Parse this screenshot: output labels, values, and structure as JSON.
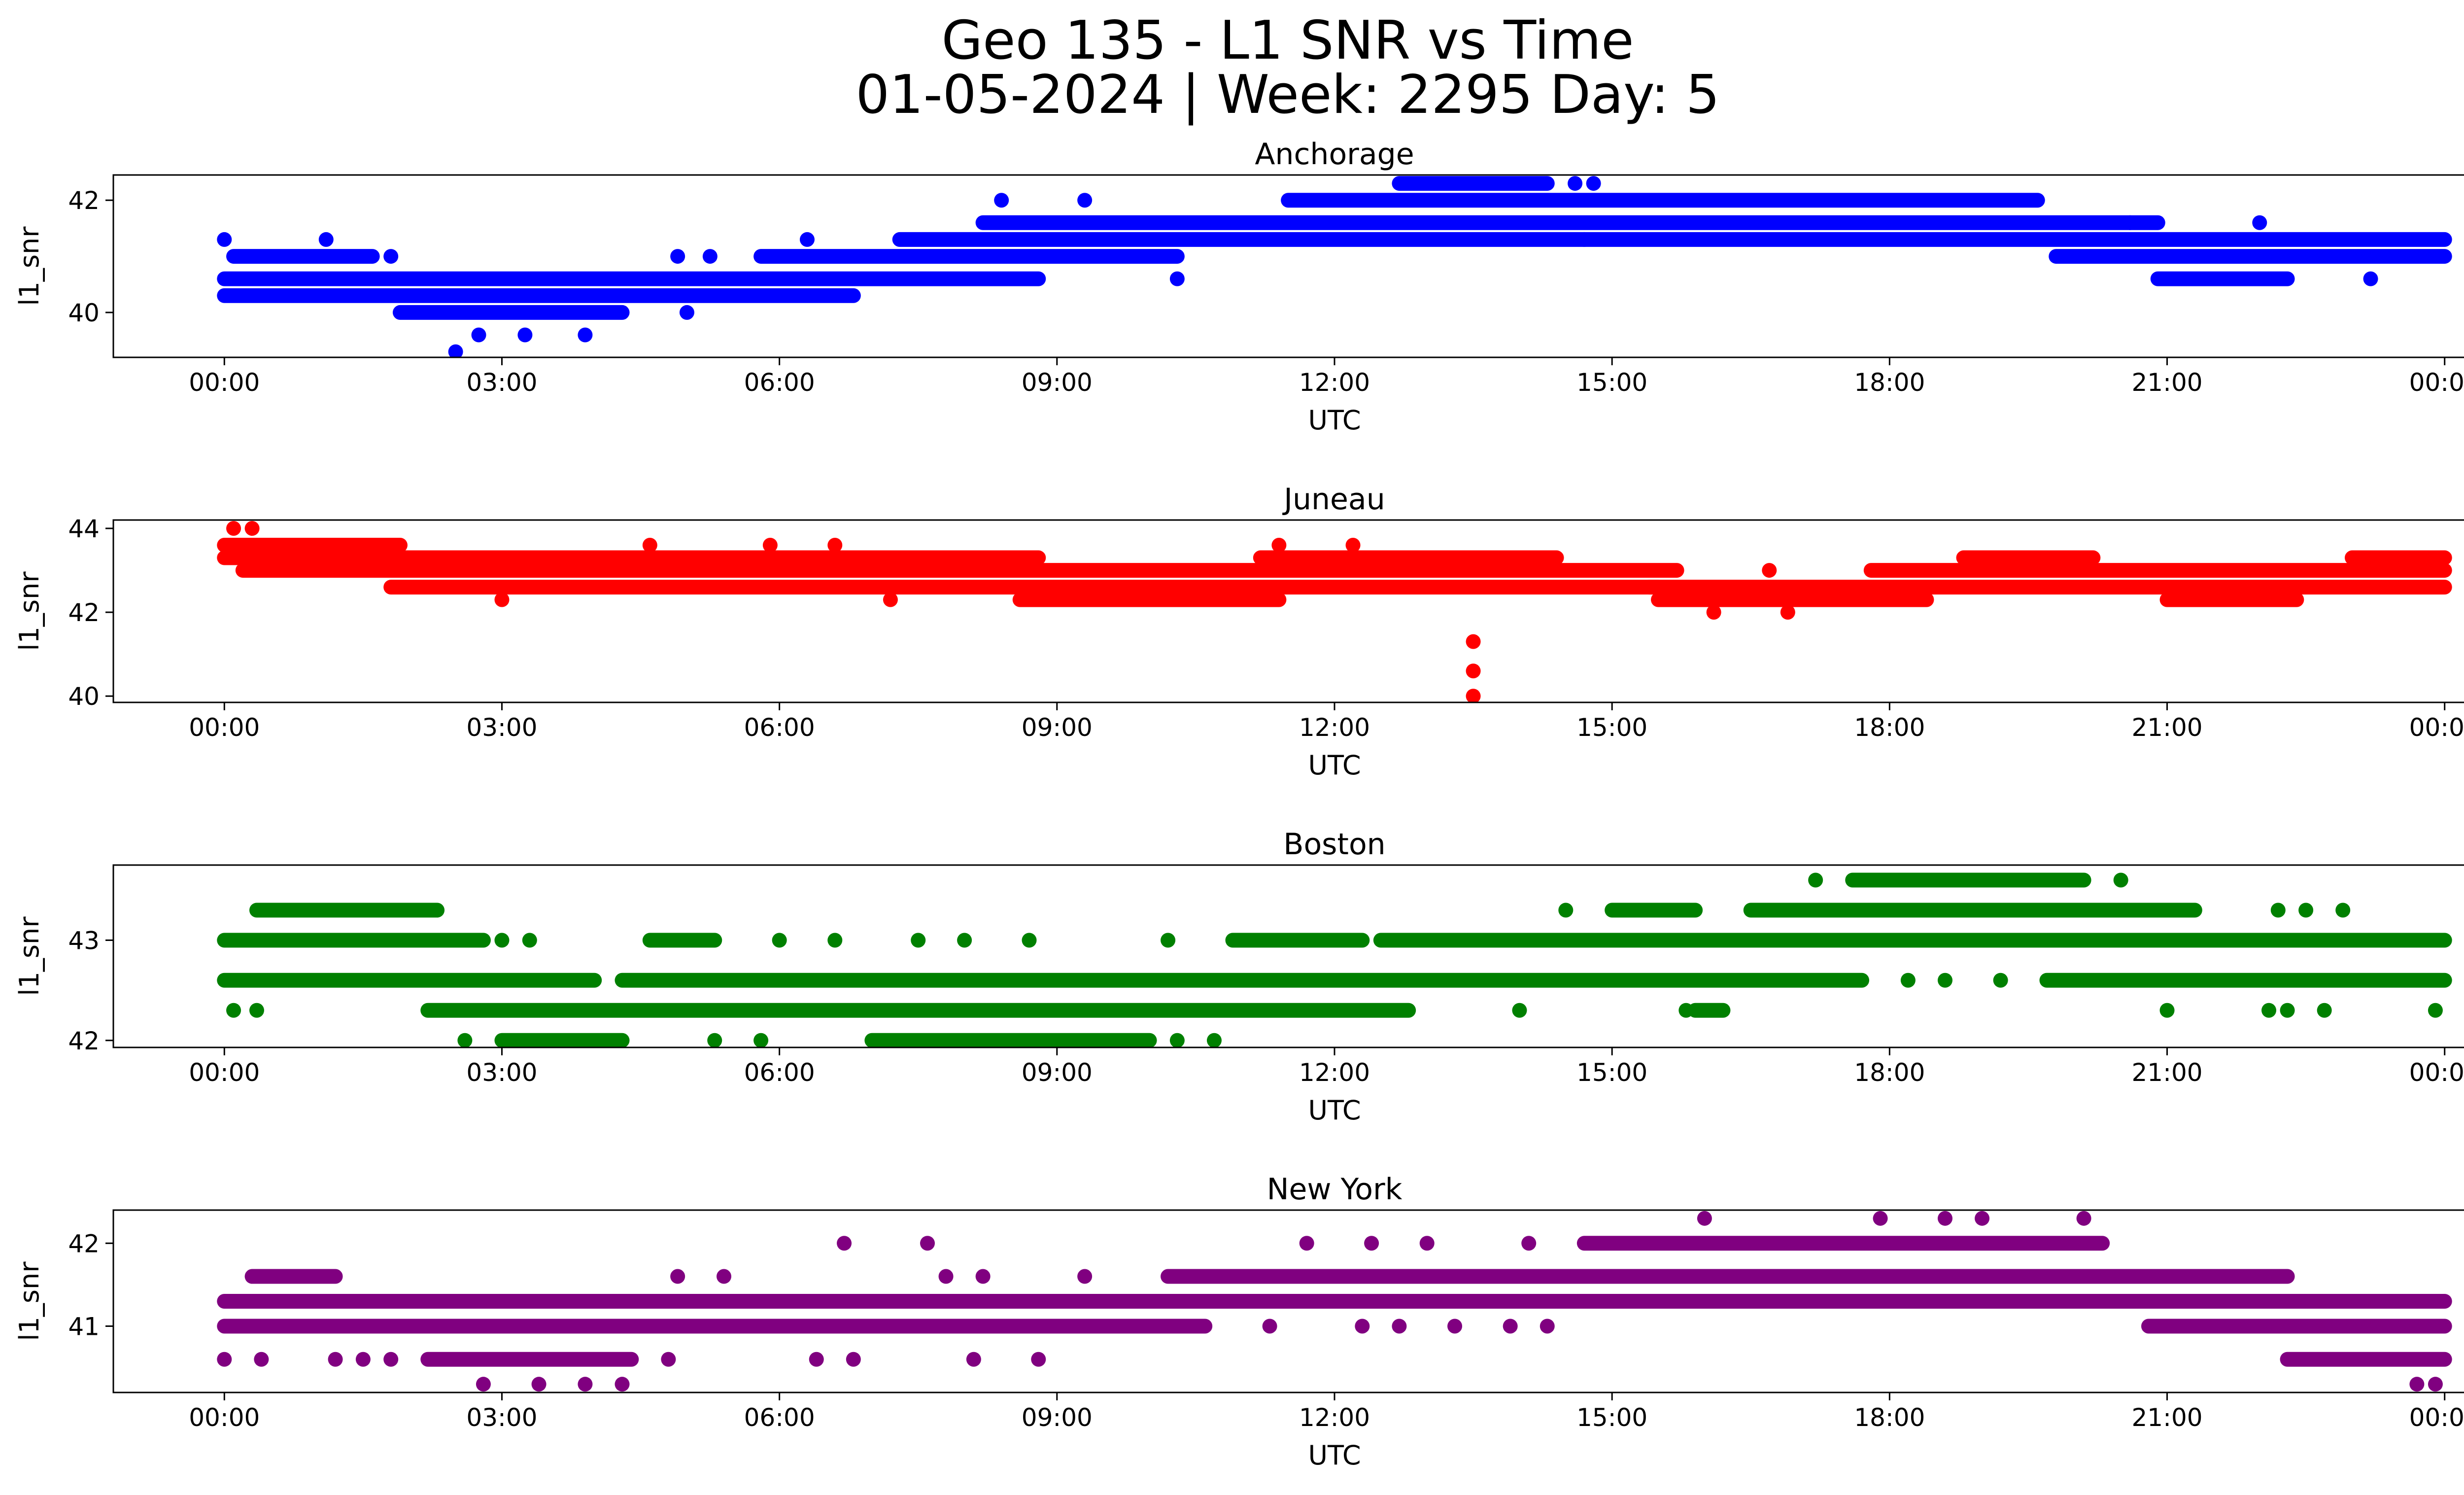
{
  "figure": {
    "title_line1": "Geo 135 - L1 SNR vs Time",
    "title_line2": "01-05-2024 | Week: 2295 Day: 5"
  },
  "chart_data": [
    {
      "type": "scatter",
      "title": "Anchorage",
      "xlabel": "UTC",
      "ylabel": "l1_snr",
      "color": "#0000ff",
      "x_ticks": [
        "00:00",
        "03:00",
        "06:00",
        "09:00",
        "12:00",
        "15:00",
        "18:00",
        "21:00",
        "00:00"
      ],
      "xlim_hours": [
        -1.2,
        25.2
      ],
      "y_ticks": [
        40,
        42
      ],
      "ylim": [
        39.2,
        42.45
      ],
      "levels": [
        39.3,
        39.6,
        40.0,
        40.3,
        40.6,
        41.0,
        41.3,
        41.6,
        42.0,
        42.3
      ],
      "bands": [
        {
          "level": 40.3,
          "from": 0.0,
          "to": 6.8
        },
        {
          "level": 40.6,
          "from": 0.0,
          "to": 8.8
        },
        {
          "level": 41.0,
          "from": 0.1,
          "to": 1.6
        },
        {
          "level": 40.0,
          "from": 1.9,
          "to": 4.3
        },
        {
          "level": 41.0,
          "from": 5.8,
          "to": 10.3
        },
        {
          "level": 41.3,
          "from": 7.3,
          "to": 24.0
        },
        {
          "level": 41.6,
          "from": 8.2,
          "to": 20.9
        },
        {
          "level": 42.0,
          "from": 11.5,
          "to": 19.6
        },
        {
          "level": 42.3,
          "from": 12.7,
          "to": 14.3
        },
        {
          "level": 41.0,
          "from": 19.8,
          "to": 24.0
        },
        {
          "level": 40.6,
          "from": 20.9,
          "to": 22.3
        }
      ],
      "points": [
        {
          "h": 2.5,
          "v": 39.3
        },
        {
          "h": 2.75,
          "v": 39.6
        },
        {
          "h": 3.25,
          "v": 39.6
        },
        {
          "h": 3.9,
          "v": 39.6
        },
        {
          "h": 0.0,
          "v": 41.3
        },
        {
          "h": 1.1,
          "v": 41.3
        },
        {
          "h": 1.8,
          "v": 41.0
        },
        {
          "h": 5.0,
          "v": 40.0
        },
        {
          "h": 4.9,
          "v": 41.0
        },
        {
          "h": 5.25,
          "v": 41.0
        },
        {
          "h": 6.3,
          "v": 41.3
        },
        {
          "h": 10.3,
          "v": 40.6
        },
        {
          "h": 14.7,
          "v": 41.3
        },
        {
          "h": 14.6,
          "v": 42.3
        },
        {
          "h": 14.8,
          "v": 42.3
        },
        {
          "h": 23.2,
          "v": 40.6
        },
        {
          "h": 20.6,
          "v": 41.6
        },
        {
          "h": 22.0,
          "v": 41.6
        },
        {
          "h": 8.4,
          "v": 42.0
        },
        {
          "h": 9.3,
          "v": 42.0
        }
      ]
    },
    {
      "type": "scatter",
      "title": "Juneau",
      "xlabel": "UTC",
      "ylabel": "l1_snr",
      "color": "#ff0000",
      "x_ticks": [
        "00:00",
        "03:00",
        "06:00",
        "09:00",
        "12:00",
        "15:00",
        "18:00",
        "21:00",
        "00:00"
      ],
      "xlim_hours": [
        -1.2,
        25.2
      ],
      "y_ticks": [
        40,
        42,
        44
      ],
      "ylim": [
        39.85,
        44.2
      ],
      "levels": [
        40.0,
        40.6,
        41.3,
        42.0,
        42.3,
        42.6,
        43.0,
        43.3,
        43.6,
        44.0
      ],
      "bands": [
        {
          "level": 43.6,
          "from": 0.0,
          "to": 1.9
        },
        {
          "level": 43.3,
          "from": 0.0,
          "to": 8.8
        },
        {
          "level": 43.0,
          "from": 0.2,
          "to": 15.7
        },
        {
          "level": 42.6,
          "from": 1.8,
          "to": 15.5
        },
        {
          "level": 42.3,
          "from": 8.6,
          "to": 11.4
        },
        {
          "level": 43.3,
          "from": 11.2,
          "to": 14.4
        },
        {
          "level": 42.3,
          "from": 15.5,
          "to": 18.4
        },
        {
          "level": 42.6,
          "from": 15.4,
          "to": 24.0
        },
        {
          "level": 43.0,
          "from": 17.8,
          "to": 24.0
        },
        {
          "level": 43.3,
          "from": 18.8,
          "to": 20.2
        },
        {
          "level": 42.3,
          "from": 21.0,
          "to": 22.4
        },
        {
          "level": 43.3,
          "from": 23.0,
          "to": 24.0
        }
      ],
      "points": [
        {
          "h": 0.1,
          "v": 44.0
        },
        {
          "h": 0.3,
          "v": 44.0
        },
        {
          "h": 3.0,
          "v": 42.3
        },
        {
          "h": 7.2,
          "v": 42.3
        },
        {
          "h": 13.5,
          "v": 41.3
        },
        {
          "h": 13.5,
          "v": 40.6
        },
        {
          "h": 13.5,
          "v": 40.0
        },
        {
          "h": 16.1,
          "v": 42.0
        },
        {
          "h": 16.9,
          "v": 42.0
        },
        {
          "h": 4.6,
          "v": 43.6
        },
        {
          "h": 5.9,
          "v": 43.6
        },
        {
          "h": 6.6,
          "v": 43.6
        },
        {
          "h": 12.2,
          "v": 43.6
        },
        {
          "h": 11.4,
          "v": 43.6
        },
        {
          "h": 16.7,
          "v": 43.0
        },
        {
          "h": 23.2,
          "v": 43.3
        }
      ]
    },
    {
      "type": "scatter",
      "title": "Boston",
      "xlabel": "UTC",
      "ylabel": "l1_snr",
      "color": "#008000",
      "x_ticks": [
        "00:00",
        "03:00",
        "06:00",
        "09:00",
        "12:00",
        "15:00",
        "18:00",
        "21:00",
        "00:00"
      ],
      "xlim_hours": [
        -1.2,
        25.2
      ],
      "y_ticks": [
        42,
        43
      ],
      "ylim": [
        41.93,
        43.75
      ],
      "levels": [
        42.0,
        42.3,
        42.6,
        43.0,
        43.3,
        43.6
      ],
      "bands": [
        {
          "level": 43.3,
          "from": 0.35,
          "to": 2.3
        },
        {
          "level": 43.0,
          "from": 0.0,
          "to": 2.8
        },
        {
          "level": 42.6,
          "from": 0.0,
          "to": 4.0
        },
        {
          "level": 42.3,
          "from": 2.2,
          "to": 12.8
        },
        {
          "level": 42.0,
          "from": 3.0,
          "to": 4.3
        },
        {
          "level": 42.6,
          "from": 4.3,
          "to": 17.7
        },
        {
          "level": 43.0,
          "from": 4.6,
          "to": 5.3
        },
        {
          "level": 43.0,
          "from": 10.9,
          "to": 12.3
        },
        {
          "level": 43.0,
          "from": 12.5,
          "to": 24.0
        },
        {
          "level": 43.3,
          "from": 15.0,
          "to": 15.9
        },
        {
          "level": 43.3,
          "from": 16.5,
          "to": 21.3
        },
        {
          "level": 43.6,
          "from": 17.6,
          "to": 20.1
        },
        {
          "level": 42.6,
          "from": 19.7,
          "to": 24.0
        },
        {
          "level": 42.0,
          "from": 7.0,
          "to": 10.0
        },
        {
          "level": 42.3,
          "from": 15.9,
          "to": 16.2
        }
      ],
      "points": [
        {
          "h": 0.1,
          "v": 42.3
        },
        {
          "h": 0.35,
          "v": 42.3
        },
        {
          "h": 2.6,
          "v": 42.0
        },
        {
          "h": 5.3,
          "v": 42.0
        },
        {
          "h": 5.8,
          "v": 42.0
        },
        {
          "h": 10.3,
          "v": 42.0
        },
        {
          "h": 10.7,
          "v": 42.0
        },
        {
          "h": 3.0,
          "v": 43.0
        },
        {
          "h": 3.3,
          "v": 43.0
        },
        {
          "h": 6.0,
          "v": 43.0
        },
        {
          "h": 6.6,
          "v": 43.0
        },
        {
          "h": 7.5,
          "v": 43.0
        },
        {
          "h": 8.0,
          "v": 43.0
        },
        {
          "h": 8.7,
          "v": 43.0
        },
        {
          "h": 10.2,
          "v": 43.0
        },
        {
          "h": 14.5,
          "v": 43.3
        },
        {
          "h": 17.2,
          "v": 43.6
        },
        {
          "h": 20.0,
          "v": 43.6
        },
        {
          "h": 20.5,
          "v": 43.6
        },
        {
          "h": 22.2,
          "v": 43.3
        },
        {
          "h": 22.5,
          "v": 43.3
        },
        {
          "h": 22.9,
          "v": 43.3
        },
        {
          "h": 18.2,
          "v": 42.6
        },
        {
          "h": 18.6,
          "v": 42.6
        },
        {
          "h": 19.2,
          "v": 42.6
        },
        {
          "h": 21.0,
          "v": 42.3
        },
        {
          "h": 22.1,
          "v": 42.3
        },
        {
          "h": 22.3,
          "v": 42.3
        },
        {
          "h": 22.7,
          "v": 42.3
        },
        {
          "h": 23.9,
          "v": 42.3
        },
        {
          "h": 15.8,
          "v": 42.3
        },
        {
          "h": 14.0,
          "v": 42.3
        }
      ]
    },
    {
      "type": "scatter",
      "title": "New York",
      "xlabel": "UTC",
      "ylabel": "l1_snr",
      "color": "#800080",
      "x_ticks": [
        "00:00",
        "03:00",
        "06:00",
        "09:00",
        "12:00",
        "15:00",
        "18:00",
        "21:00",
        "00:00"
      ],
      "xlim_hours": [
        -1.2,
        25.2
      ],
      "y_ticks": [
        41,
        42
      ],
      "ylim": [
        40.2,
        42.4
      ],
      "levels": [
        40.3,
        40.6,
        41.0,
        41.3,
        41.6,
        42.0,
        42.3
      ],
      "bands": [
        {
          "level": 41.3,
          "from": 0.0,
          "to": 24.0
        },
        {
          "level": 41.0,
          "from": 0.0,
          "to": 10.6
        },
        {
          "level": 41.6,
          "from": 0.3,
          "to": 1.2
        },
        {
          "level": 40.6,
          "from": 2.2,
          "to": 4.4
        },
        {
          "level": 41.6,
          "from": 10.2,
          "to": 22.3
        },
        {
          "level": 42.0,
          "from": 14.7,
          "to": 20.3
        },
        {
          "level": 41.0,
          "from": 20.8,
          "to": 24.0
        },
        {
          "level": 40.6,
          "from": 22.3,
          "to": 24.0
        }
      ],
      "points": [
        {
          "h": 0.0,
          "v": 40.6
        },
        {
          "h": 0.4,
          "v": 40.6
        },
        {
          "h": 1.2,
          "v": 40.6
        },
        {
          "h": 1.5,
          "v": 40.6
        },
        {
          "h": 1.8,
          "v": 40.6
        },
        {
          "h": 4.8,
          "v": 40.6
        },
        {
          "h": 6.4,
          "v": 40.6
        },
        {
          "h": 6.8,
          "v": 40.6
        },
        {
          "h": 8.1,
          "v": 40.6
        },
        {
          "h": 8.8,
          "v": 40.6
        },
        {
          "h": 2.8,
          "v": 40.3
        },
        {
          "h": 3.4,
          "v": 40.3
        },
        {
          "h": 3.9,
          "v": 40.3
        },
        {
          "h": 4.3,
          "v": 40.3
        },
        {
          "h": 23.7,
          "v": 40.3
        },
        {
          "h": 23.9,
          "v": 40.3
        },
        {
          "h": 6.7,
          "v": 42.0
        },
        {
          "h": 7.6,
          "v": 42.0
        },
        {
          "h": 11.7,
          "v": 42.0
        },
        {
          "h": 12.4,
          "v": 42.0
        },
        {
          "h": 13.0,
          "v": 42.0
        },
        {
          "h": 14.1,
          "v": 42.0
        },
        {
          "h": 16.0,
          "v": 42.3
        },
        {
          "h": 17.9,
          "v": 42.3
        },
        {
          "h": 18.6,
          "v": 42.3
        },
        {
          "h": 19.0,
          "v": 42.3
        },
        {
          "h": 20.1,
          "v": 42.3
        },
        {
          "h": 4.9,
          "v": 41.6
        },
        {
          "h": 5.4,
          "v": 41.6
        },
        {
          "h": 7.8,
          "v": 41.6
        },
        {
          "h": 8.2,
          "v": 41.6
        },
        {
          "h": 9.3,
          "v": 41.6
        },
        {
          "h": 11.3,
          "v": 41.0
        },
        {
          "h": 12.3,
          "v": 41.0
        },
        {
          "h": 12.7,
          "v": 41.0
        },
        {
          "h": 13.3,
          "v": 41.0
        },
        {
          "h": 13.9,
          "v": 41.0
        },
        {
          "h": 14.3,
          "v": 41.0
        },
        {
          "h": 22.7,
          "v": 41.3
        }
      ]
    }
  ]
}
